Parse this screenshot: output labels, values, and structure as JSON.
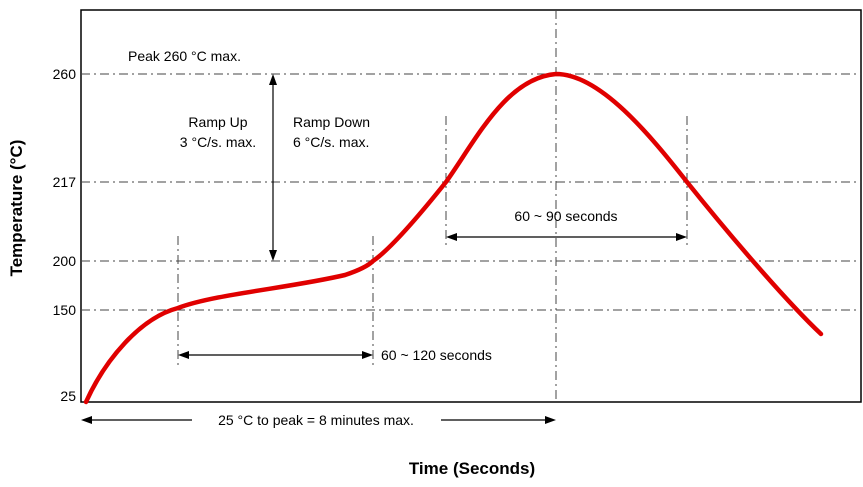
{
  "chart_data": {
    "type": "line",
    "xlabel": "Time (Seconds)",
    "ylabel": "Temperature (°C)",
    "y_ticks": [
      "260",
      "217",
      "200",
      "150",
      "25"
    ],
    "grid": "dash-dot",
    "x_axis_tick_labels": "none",
    "series": [
      {
        "color": "#e00000",
        "points_temperature_c": [
          25,
          100,
          150,
          160,
          170,
          180,
          190,
          200,
          217,
          240,
          255,
          260,
          255,
          240,
          217,
          190,
          160,
          150,
          133
        ]
      }
    ],
    "annotations": {
      "peak": "Peak 260 °C max.",
      "ramp_up_1": "Ramp Up",
      "ramp_up_2": "3 °C/s. max.",
      "ramp_down_1": "Ramp Down",
      "ramp_down_2": "6 °C/s. max.",
      "above_217": "60 ~ 90 seconds",
      "soak": "60 ~ 120 seconds",
      "total": "25 °C to peak = 8 minutes max."
    },
    "colors": {
      "curve": "#e00000",
      "axis": "#000000",
      "grid": "#444444"
    }
  }
}
